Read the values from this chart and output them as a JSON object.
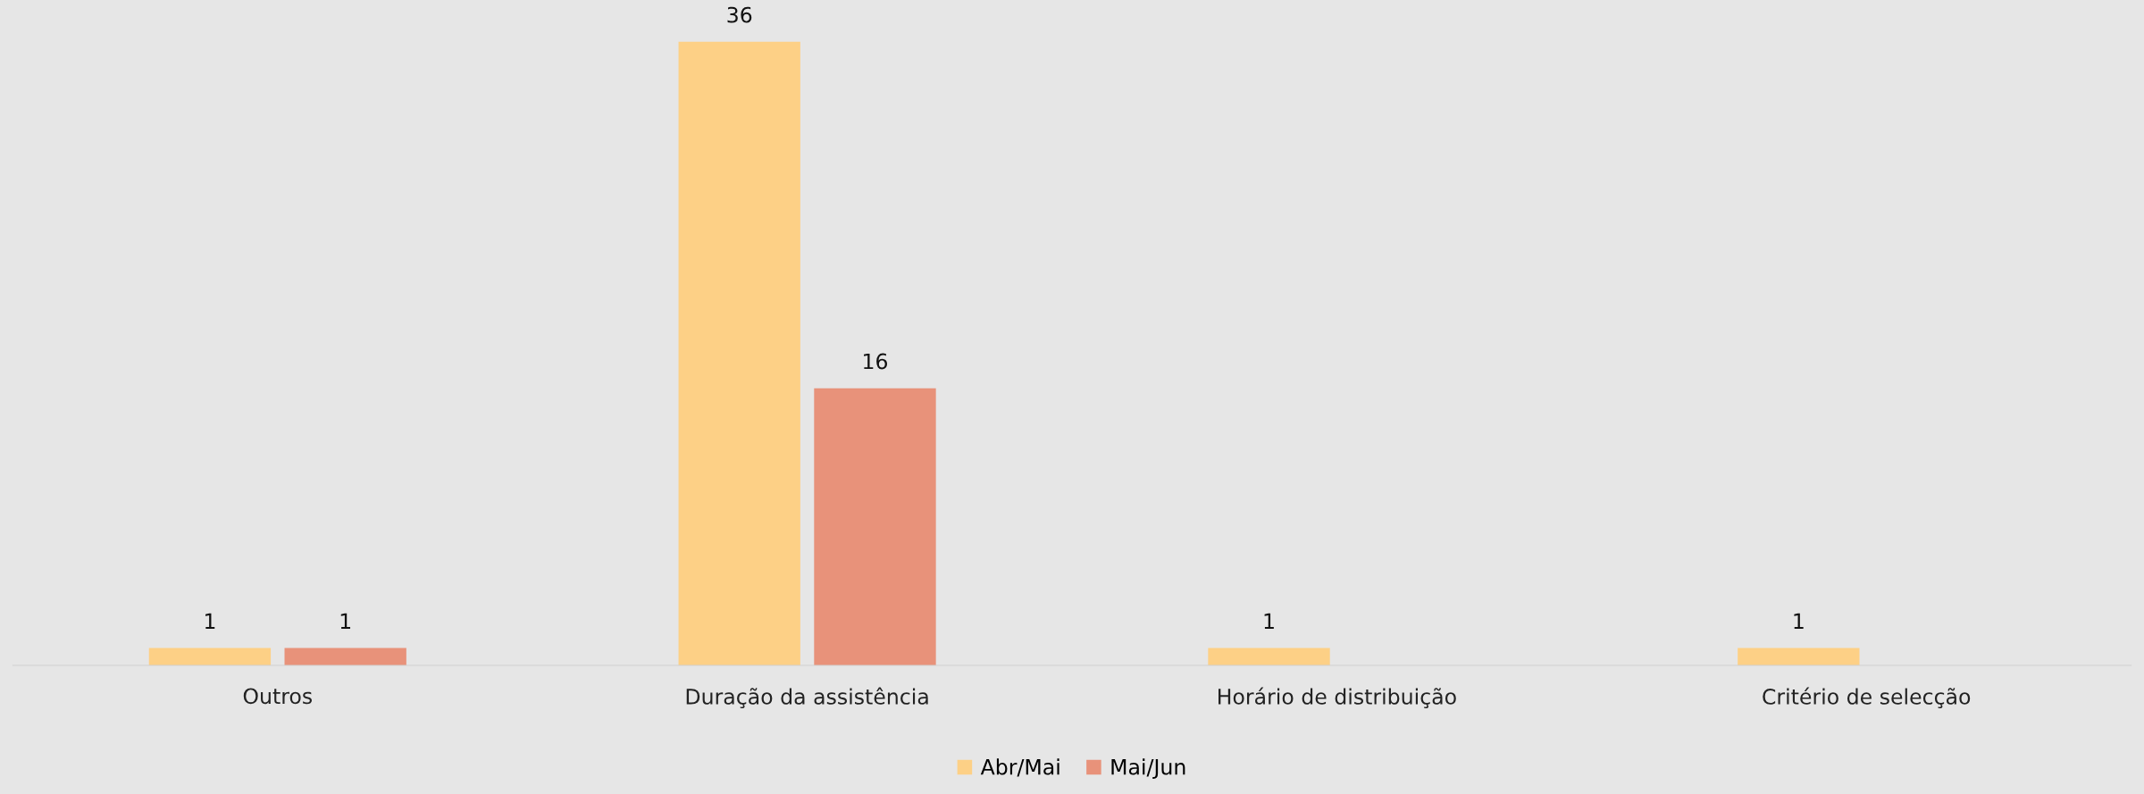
{
  "chart_data": {
    "type": "bar",
    "categories": [
      "Outros",
      "Duração da assistência",
      "Horário de distribuição",
      "Critério de selecção"
    ],
    "series": [
      {
        "name": "Abr/Mai",
        "color": "#fdd086",
        "values": [
          1,
          36,
          1,
          1
        ]
      },
      {
        "name": "Mai/Jun",
        "color": "#e8927a",
        "values": [
          1,
          16,
          null,
          null
        ]
      }
    ],
    "data_labels": true,
    "grid": false,
    "legend": "bottom"
  }
}
